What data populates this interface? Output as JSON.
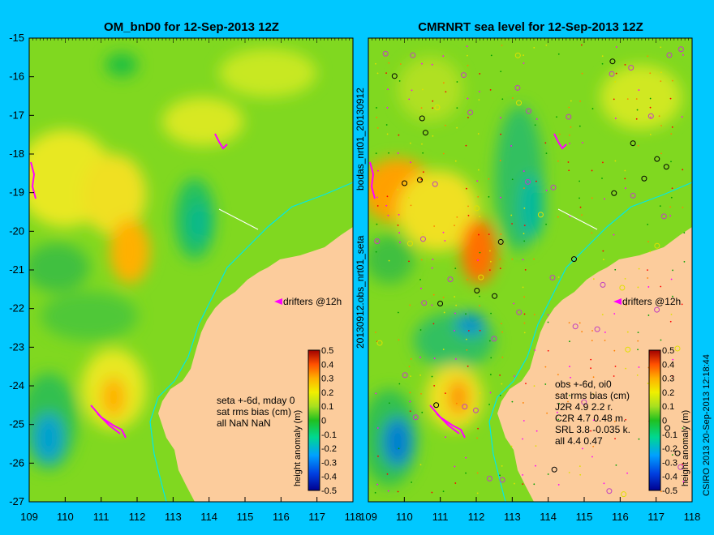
{
  "left_panel": {
    "title": "OM_bnD0 for 12-Sep-2013 12Z",
    "drifters_label": "drifters @12h",
    "info_lines": [
      "seta +-6d, mday 0",
      "sat rms bias (cm)",
      "all NaN NaN"
    ]
  },
  "right_panel": {
    "title": "CMRNRT sea level  for 12-Sep-2013 12Z",
    "drifters_label": "drifters @12h",
    "info_lines": [
      "obs +-6d, oi0",
      "sat rms bias (cm)",
      "J2R   4.9 2.2 r.",
      "C2R   4.7 0.48 m.",
      "SRL   3.8 -0.035 k.",
      "all   4.4 0.47"
    ]
  },
  "middle_labels": {
    "top": "bodas_nrt01_20130912",
    "bottom": "20130912.obs_nrt01_seta"
  },
  "credit": "CSIRO 2013  20-Sep-2013 12:18:44",
  "axes": {
    "lon_ticks": [
      "109",
      "110",
      "111",
      "112",
      "113",
      "114",
      "115",
      "116",
      "117",
      "118"
    ],
    "lat_ticks": [
      "-15",
      "-16",
      "-17",
      "-18",
      "-19",
      "-20",
      "-21",
      "-22",
      "-23",
      "-24",
      "-25",
      "-26",
      "-27"
    ]
  },
  "colorbar": {
    "label": "height anomaly (m)",
    "ticks": [
      "0.5",
      "0.4",
      "0.3",
      "0.2",
      "0.1",
      "0",
      "-0.1",
      "-0.2",
      "-0.3",
      "-0.4",
      "-0.5"
    ]
  },
  "colors": {
    "background": "#00c8ff",
    "land": "#fccc9c",
    "coast": "#00e8e8",
    "drifters": "#ff00ff"
  }
}
